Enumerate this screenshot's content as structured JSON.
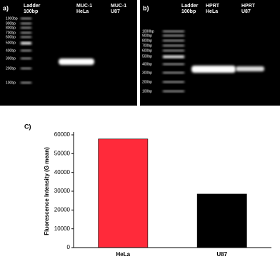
{
  "gels": [
    {
      "label": "a)",
      "lanes": [
        "Ladder\n100bp",
        "MUC-1\nHeLa",
        "MUC-1\nU87"
      ],
      "ladder": [
        "1000bp",
        "900bp",
        "800bp",
        "700bp",
        "600bp",
        "500bp",
        "400bp",
        "300bp",
        "200bp",
        "100bp"
      ]
    },
    {
      "label": "b)",
      "lanes": [
        "Ladder\n100bp",
        "HPRT\nHeLa",
        "HPRT\nU87"
      ],
      "ladder": [
        "1000bp",
        "900bp",
        "800bp",
        "700bp",
        "600bp",
        "500bp",
        "400bp",
        "300bp",
        "200bp",
        "100bp"
      ]
    }
  ],
  "chart_data": {
    "type": "bar",
    "panel_label": "C)",
    "ylabel": "Fluorescence Intensity (G mean)",
    "categories": [
      "HeLa",
      "U87"
    ],
    "values": [
      57800,
      28500
    ],
    "colors": [
      "#ff2a3a",
      "#000000"
    ],
    "ylim": [
      0,
      60000
    ],
    "yticks": [
      0,
      10000,
      20000,
      30000,
      40000,
      50000,
      60000
    ],
    "grid": false
  }
}
